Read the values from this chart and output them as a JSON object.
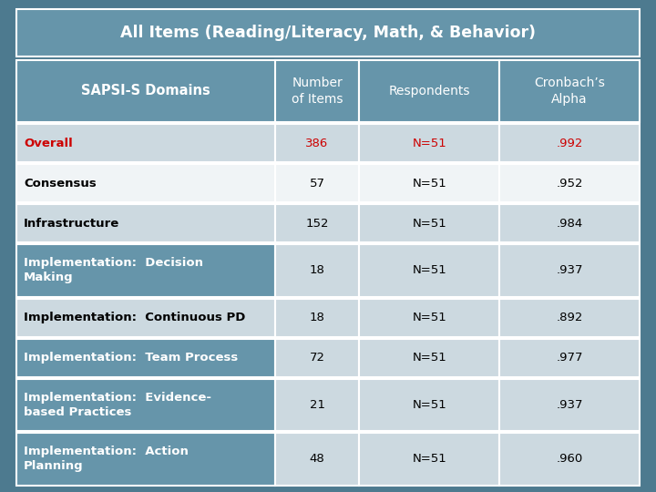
{
  "title": "All Items (Reading/Literacy, Math, & Behavior)",
  "title_bg": "#6695aa",
  "header_bg": "#6695aa",
  "light_bg": "#ccd9e0",
  "white_bg": "#f0f4f6",
  "col_header": [
    "SAPSI-S Domains",
    "Number\nof Items",
    "Respondents",
    "Cronbach’s\nAlpha"
  ],
  "rows": [
    {
      "label": "Overall",
      "items": "386",
      "resp": "N=51",
      "alpha": ".992",
      "highlight": true,
      "bg": "#ccd9e0",
      "data_bg": "#ccd9e0"
    },
    {
      "label": "Consensus",
      "items": "57",
      "resp": "N=51",
      "alpha": ".952",
      "highlight": false,
      "bg": "#f0f4f6",
      "data_bg": "#f0f4f6"
    },
    {
      "label": "Infrastructure",
      "items": "152",
      "resp": "N=51",
      "alpha": ".984",
      "highlight": false,
      "bg": "#ccd9e0",
      "data_bg": "#ccd9e0"
    },
    {
      "label": "Implementation:  Decision\nMaking",
      "items": "18",
      "resp": "N=51",
      "alpha": ".937",
      "highlight": false,
      "bg": "#6695aa",
      "data_bg": "#ccd9e0"
    },
    {
      "label": "Implementation:  Continuous PD",
      "items": "18",
      "resp": "N=51",
      "alpha": ".892",
      "highlight": false,
      "bg": "#ccd9e0",
      "data_bg": "#ccd9e0"
    },
    {
      "label": "Implementation:  Team Process",
      "items": "72",
      "resp": "N=51",
      "alpha": ".977",
      "highlight": false,
      "bg": "#6695aa",
      "data_bg": "#ccd9e0"
    },
    {
      "label": "Implementation:  Evidence-\nbased Practices",
      "items": "21",
      "resp": "N=51",
      "alpha": ".937",
      "highlight": false,
      "bg": "#6695aa",
      "data_bg": "#ccd9e0"
    },
    {
      "label": "Implementation:  Action\nPlanning",
      "items": "48",
      "resp": "N=51",
      "alpha": ".960",
      "highlight": false,
      "bg": "#6695aa",
      "data_bg": "#ccd9e0"
    }
  ],
  "highlight_color": "#cc0000",
  "normal_text_color": "#000000",
  "header_text_color": "#ffffff",
  "dark_row_text_color": "#ffffff",
  "outer_bg": "#4d7a8f",
  "border_color": "#ffffff"
}
